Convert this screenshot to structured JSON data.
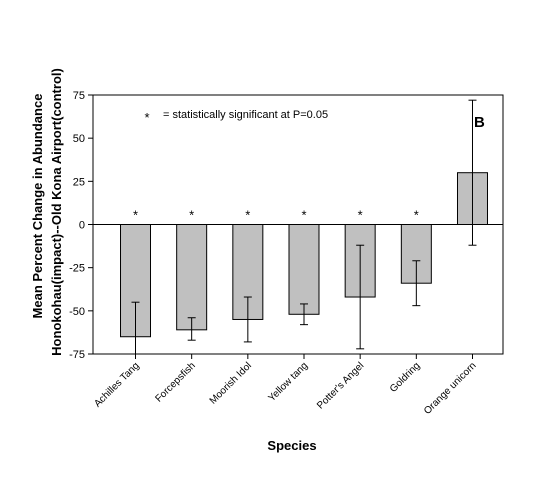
{
  "chart_data": {
    "type": "bar",
    "panel_label": "B",
    "annotation": "= statistically significant at P=0.05",
    "annotation_marker": "*",
    "xlabel": "Species",
    "ylabel_line1": "Mean Percent Change in Abundance",
    "ylabel_line2": "Honokohau(impact)--Old Kona Airport(control)",
    "ylim": [
      -75,
      75
    ],
    "yticks": [
      -75,
      -50,
      -25,
      0,
      25,
      50,
      75
    ],
    "categories": [
      "Achilles Tang",
      "Forcepsfish",
      "Moorish Idol",
      "Yellow tang",
      "Potter's Angel",
      "Goldring",
      "Orange unicorn"
    ],
    "values": [
      -65,
      -61,
      -55,
      -52,
      -42,
      -34,
      30
    ],
    "error_low": [
      -75,
      -67,
      -68,
      -58,
      -72,
      -47,
      -12
    ],
    "error_high": [
      -45,
      -54,
      -42,
      -46,
      -12,
      -21,
      72
    ],
    "significant": [
      true,
      true,
      true,
      true,
      true,
      true,
      false
    ],
    "bar_color": "#c0c0c0",
    "grid": false
  }
}
